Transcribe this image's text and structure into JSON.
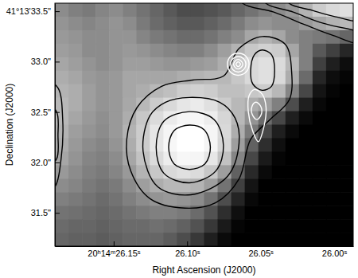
{
  "chart_data": {
    "type": "contour",
    "xlabel": "Right Ascension (J2000)",
    "ylabel": "Declination (J2000)",
    "xlim": [
      26.19,
      25.987
    ],
    "ylim": [
      31.17,
      33.58
    ],
    "xticks": [
      {
        "value": 26.15,
        "label": "20ʰ14ᵐ26.15ˢ"
      },
      {
        "value": 26.1,
        "label": "26.10ˢ"
      },
      {
        "value": 26.05,
        "label": "26.05ˢ"
      },
      {
        "value": 26.0,
        "label": "26.00ˢ"
      }
    ],
    "yticks": [
      {
        "value": 33.5,
        "label": "41°13'33.5\""
      },
      {
        "value": 33.0,
        "label": "33.0\""
      },
      {
        "value": 32.5,
        "label": "32.5\""
      },
      {
        "value": 32.0,
        "label": "32.0\""
      },
      {
        "value": 31.5,
        "label": "31.5\""
      }
    ],
    "cell_range": [
      0,
      100
    ],
    "cells": [
      [
        55,
        50,
        48,
        52,
        55,
        50,
        45,
        40,
        35,
        30,
        30,
        32,
        35,
        40,
        45,
        50,
        55,
        60,
        70,
        80,
        85,
        88
      ],
      [
        58,
        55,
        52,
        55,
        58,
        55,
        48,
        42,
        38,
        35,
        35,
        38,
        42,
        48,
        55,
        58,
        55,
        55,
        60,
        65,
        70,
        72
      ],
      [
        60,
        58,
        55,
        55,
        58,
        58,
        52,
        48,
        45,
        42,
        42,
        45,
        50,
        55,
        65,
        70,
        65,
        55,
        50,
        48,
        45,
        40
      ],
      [
        62,
        60,
        55,
        55,
        58,
        60,
        58,
        55,
        52,
        50,
        50,
        55,
        62,
        70,
        78,
        82,
        80,
        65,
        50,
        35,
        25,
        15
      ],
      [
        65,
        62,
        58,
        55,
        58,
        62,
        62,
        60,
        58,
        58,
        60,
        62,
        68,
        78,
        85,
        88,
        86,
        72,
        50,
        25,
        12,
        5
      ],
      [
        68,
        65,
        60,
        58,
        60,
        65,
        65,
        65,
        65,
        68,
        70,
        72,
        72,
        78,
        85,
        88,
        85,
        68,
        42,
        15,
        5,
        2
      ],
      [
        70,
        68,
        62,
        58,
        60,
        65,
        68,
        72,
        75,
        80,
        82,
        80,
        75,
        75,
        78,
        80,
        72,
        52,
        28,
        8,
        2,
        0
      ],
      [
        72,
        68,
        62,
        58,
        60,
        66,
        72,
        80,
        85,
        90,
        92,
        88,
        80,
        72,
        68,
        62,
        50,
        30,
        12,
        3,
        0,
        0
      ],
      [
        72,
        65,
        60,
        56,
        60,
        68,
        78,
        86,
        92,
        96,
        97,
        93,
        84,
        72,
        58,
        42,
        28,
        12,
        4,
        0,
        0,
        0
      ],
      [
        70,
        62,
        58,
        55,
        60,
        70,
        80,
        90,
        96,
        100,
        100,
        96,
        85,
        68,
        48,
        28,
        12,
        4,
        0,
        0,
        0,
        0
      ],
      [
        68,
        60,
        55,
        52,
        58,
        68,
        80,
        90,
        97,
        100,
        100,
        96,
        84,
        62,
        38,
        18,
        6,
        0,
        0,
        0,
        0,
        0
      ],
      [
        65,
        58,
        52,
        50,
        55,
        65,
        76,
        86,
        93,
        97,
        96,
        90,
        76,
        52,
        28,
        10,
        2,
        0,
        0,
        0,
        0,
        0
      ],
      [
        60,
        55,
        50,
        48,
        52,
        60,
        70,
        78,
        85,
        88,
        86,
        78,
        62,
        38,
        16,
        4,
        0,
        0,
        0,
        0,
        0,
        0
      ],
      [
        55,
        52,
        48,
        45,
        48,
        55,
        62,
        68,
        72,
        72,
        70,
        62,
        45,
        25,
        8,
        0,
        0,
        0,
        0,
        0,
        0,
        0
      ],
      [
        50,
        48,
        45,
        42,
        45,
        50,
        55,
        58,
        60,
        58,
        55,
        45,
        30,
        14,
        3,
        0,
        0,
        0,
        0,
        0,
        0,
        0
      ],
      [
        45,
        44,
        42,
        40,
        42,
        45,
        48,
        50,
        50,
        48,
        42,
        32,
        18,
        6,
        0,
        0,
        0,
        0,
        0,
        0,
        0,
        0
      ],
      [
        42,
        40,
        40,
        38,
        40,
        42,
        42,
        44,
        42,
        38,
        32,
        22,
        10,
        2,
        0,
        0,
        0,
        0,
        0,
        0,
        0,
        0
      ],
      [
        40,
        38,
        38,
        36,
        38,
        40,
        40,
        40,
        36,
        30,
        22,
        12,
        4,
        0,
        0,
        0,
        0,
        0,
        0,
        0,
        0,
        0
      ]
    ],
    "contours": [
      {
        "color": "black",
        "x": [
          26.0647,
          26.0621,
          26.0411,
          26.02,
          26.0016,
          25.9805,
          25.9753
        ],
        "y": [
          33.68,
          33.578,
          33.492,
          33.367,
          33.265,
          33.194,
          33.68
        ]
      },
      {
        "color": "black",
        "x": [
          26.0489,
          26.0463,
          26.0279,
          26.0095,
          25.9911,
          25.9753,
          25.9753
        ],
        "y": [
          33.68,
          33.578,
          33.492,
          33.39,
          33.327,
          33.304,
          33.68
        ]
      },
      {
        "color": "black",
        "x": [
          26.0332,
          26.0305,
          26.0147,
          25.9989,
          25.9805,
          25.9753
        ],
        "y": [
          33.68,
          33.578,
          33.508,
          33.445,
          33.414,
          33.68
        ]
      },
      {
        "color": "black",
        "x": [
          26.1963,
          26.1879,
          26.1847,
          26.1858,
          26.19,
          26.1963
        ],
        "y": [
          32.818,
          32.739,
          32.425,
          32.033,
          31.759,
          31.72
        ]
      },
      {
        "color": "black",
        "x": [
          26.1963,
          26.1889,
          26.1879,
          26.1889,
          26.1963
        ],
        "y": [
          32.582,
          32.504,
          32.269,
          32.033,
          31.955
        ]
      },
      {
        "color": "black",
        "x": [
          26.0984,
          26.0884,
          26.0842,
          26.0879,
          26.0984,
          26.1089,
          26.1126,
          26.1089
        ],
        "y": [
          32.371,
          32.324,
          32.151,
          31.986,
          31.931,
          31.986,
          32.151,
          32.316
        ]
      },
      {
        "color": "black",
        "x": [
          26.0984,
          26.0816,
          26.0753,
          26.0805,
          26.0984,
          26.1158,
          26.1211,
          26.1158
        ],
        "y": [
          32.504,
          32.425,
          32.167,
          31.916,
          31.798,
          31.892,
          32.151,
          32.41
        ]
      },
      {
        "color": "black",
        "x": [
          26.0984,
          26.0779,
          26.0674,
          26.0647,
          26.0726,
          26.0974,
          26.12,
          26.13,
          26.1253,
          26.1147
        ],
        "y": [
          32.645,
          32.598,
          32.441,
          32.19,
          31.861,
          31.68,
          31.759,
          32.112,
          32.465,
          32.598
        ]
      },
      {
        "color": "black",
        "x": [
          26.0963,
          26.0753,
          26.0647,
          26.0489,
          26.0332,
          26.0289,
          26.0305,
          26.0437,
          26.0568,
          26.0647,
          26.0805,
          26.1016,
          26.1253,
          26.1384,
          26.1411,
          26.1342,
          26.1174
        ],
        "y": [
          32.818,
          32.857,
          33.131,
          33.249,
          33.171,
          32.896,
          32.622,
          32.425,
          32.229,
          31.837,
          31.602,
          31.547,
          31.641,
          31.916,
          32.229,
          32.543,
          32.755
        ]
      },
      {
        "color": "black",
        "x": [
          26.0489,
          26.0426,
          26.0405,
          26.0426,
          26.0489,
          26.0553,
          26.0568,
          26.0542
        ],
        "y": [
          33.116,
          33.069,
          32.912,
          32.755,
          32.716,
          32.778,
          32.912,
          33.069
        ]
      },
      {
        "color": "white",
        "x": [
          26.0653,
          26.06,
          26.0579,
          26.06,
          26.0653,
          26.0705,
          26.0726,
          26.0705
        ],
        "y": [
          33.084,
          33.053,
          32.975,
          32.896,
          32.865,
          32.896,
          32.975,
          33.053
        ]
      },
      {
        "color": "white",
        "x": [
          26.0653,
          26.0616,
          26.06,
          26.0616,
          26.0653,
          26.0689,
          26.0705,
          26.0689
        ],
        "y": [
          33.053,
          33.029,
          32.975,
          32.92,
          32.896,
          32.92,
          32.975,
          33.029
        ]
      },
      {
        "color": "white",
        "x": [
          26.0653,
          26.0632,
          26.0621,
          26.0632,
          26.0653,
          26.0674,
          26.0684,
          26.0674
        ],
        "y": [
          33.022,
          33.006,
          32.975,
          32.943,
          32.927,
          32.943,
          32.975,
          33.006
        ]
      },
      {
        "color": "white",
        "x": [
          26.0653,
          26.0637,
          26.0653,
          26.0668
        ],
        "y": [
          32.998,
          32.975,
          32.951,
          32.975
        ]
      },
      {
        "color": "white",
        "x": [
          26.0542,
          26.0489,
          26.0463,
          26.0479,
          26.0516,
          26.0553,
          26.0584,
          26.0579
        ],
        "y": [
          32.724,
          32.676,
          32.543,
          32.347,
          32.206,
          32.308,
          32.504,
          32.661
        ]
      },
      {
        "color": "white",
        "x": [
          26.0532,
          26.05,
          26.0495,
          26.0526,
          26.0558,
          26.0558
        ],
        "y": [
          32.598,
          32.559,
          32.48,
          32.425,
          32.48,
          32.559
        ]
      }
    ]
  }
}
